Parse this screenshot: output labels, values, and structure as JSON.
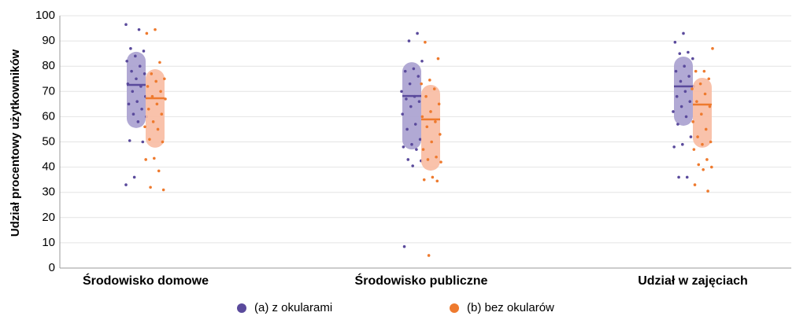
{
  "chart_data": {
    "type": "strip",
    "ylabel": "Udział procentowy użytkowników",
    "categories": [
      "Środowisko domowe",
      "Środowisko publiczne",
      "Udział w zajęciach"
    ],
    "ylim": [
      0,
      100
    ],
    "yticks": [
      0,
      10,
      20,
      30,
      40,
      50,
      60,
      70,
      80,
      90,
      100
    ],
    "grid": true,
    "series": [
      {
        "name": "(a) z okularami",
        "color": "#5a4a9c",
        "band_color": "#a8a0cf",
        "mean": [
          72.6,
          68.2,
          72
        ],
        "low": [
          55.5,
          47,
          56.4
        ],
        "high": [
          85.7,
          81.6,
          83.8
        ],
        "points": [
          [
            96.5,
            94.5,
            87,
            86,
            84,
            82,
            80,
            78,
            77,
            75,
            73,
            72,
            70,
            68,
            66,
            65,
            63,
            61,
            60,
            58,
            50.5,
            50,
            36,
            33
          ],
          [
            93,
            90,
            82,
            79,
            78,
            76,
            73,
            70,
            68,
            67,
            66,
            64,
            61,
            57,
            55,
            51,
            49,
            48,
            47,
            43,
            42.5,
            40.5,
            8.5
          ],
          [
            93,
            89.5,
            85.5,
            85,
            83,
            80,
            78,
            76,
            74,
            72,
            70,
            68,
            66,
            64,
            62,
            60,
            57,
            52,
            49,
            48,
            36,
            36
          ]
        ]
      },
      {
        "name": "(b) bez okularów",
        "color": "#ee7a2e",
        "band_color": "#f8bba2",
        "mean": [
          67.3,
          58.9,
          64.8
        ],
        "low": [
          47.7,
          38.6,
          47.7
        ],
        "high": [
          78.8,
          72.6,
          75.4
        ],
        "points": [
          [
            94.5,
            93,
            81.5,
            77,
            75,
            74,
            72,
            70,
            68,
            67,
            65,
            63,
            61,
            58,
            56,
            55,
            51,
            50,
            43.5,
            43,
            38.5,
            32,
            31
          ],
          [
            89.5,
            83,
            74.5,
            73,
            71,
            68,
            65,
            62,
            60,
            58,
            56,
            53,
            50,
            47,
            44,
            43,
            42,
            36,
            35,
            34.5,
            5
          ],
          [
            87,
            78,
            78,
            75,
            73,
            71,
            69,
            66,
            64,
            61,
            58,
            55,
            52,
            50,
            49,
            47,
            43,
            41,
            40,
            39,
            33,
            30.5
          ]
        ]
      }
    ]
  }
}
